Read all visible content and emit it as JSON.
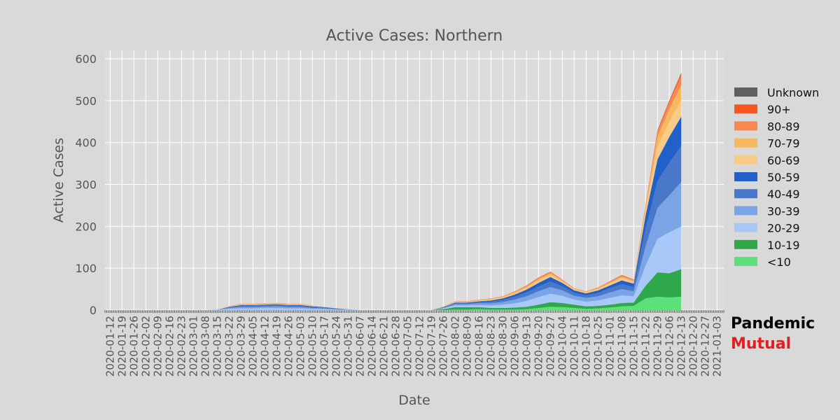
{
  "chart_data": {
    "type": "area",
    "stacked": true,
    "title": "Active Cases: Northern",
    "xlabel": "Date",
    "ylabel": "Active Cases",
    "ylim": [
      0,
      620
    ],
    "yticks": [
      0,
      100,
      200,
      300,
      400,
      500,
      600
    ],
    "x_start": "2020-01-12",
    "x_end": "2020-12-22",
    "xlim": [
      "2020-01-09",
      "2021-01-07"
    ],
    "x_tick_labels": [
      "2020-01-12",
      "2020-01-19",
      "2020-01-26",
      "2020-02-02",
      "2020-02-09",
      "2020-02-16",
      "2020-02-23",
      "2020-03-01",
      "2020-03-08",
      "2020-03-15",
      "2020-03-22",
      "2020-03-29",
      "2020-04-05",
      "2020-04-12",
      "2020-04-19",
      "2020-04-26",
      "2020-05-03",
      "2020-05-10",
      "2020-05-17",
      "2020-05-24",
      "2020-05-31",
      "2020-06-07",
      "2020-06-14",
      "2020-06-21",
      "2020-06-28",
      "2020-07-05",
      "2020-07-12",
      "2020-07-19",
      "2020-07-26",
      "2020-08-02",
      "2020-08-09",
      "2020-08-16",
      "2020-08-23",
      "2020-08-30",
      "2020-09-06",
      "2020-09-13",
      "2020-09-20",
      "2020-09-27",
      "2020-10-04",
      "2020-10-11",
      "2020-10-18",
      "2020-10-25",
      "2020-11-01",
      "2020-11-08",
      "2020-11-15",
      "2020-11-22",
      "2020-11-29",
      "2020-12-06",
      "2020-12-13",
      "2020-12-20",
      "2020-12-27",
      "2021-01-03"
    ],
    "grid": true,
    "legend_position": "right",
    "series": [
      {
        "name": "<10",
        "color": "#5ce07a",
        "values": [
          0,
          0,
          0,
          0,
          0,
          0,
          0,
          0,
          0,
          0,
          0,
          0,
          0,
          0,
          0,
          0,
          0,
          0,
          0,
          0,
          0,
          0,
          0,
          0,
          0,
          0,
          0,
          0,
          0,
          1,
          1,
          2,
          1,
          1,
          1,
          2,
          5,
          8,
          7,
          5,
          3,
          4,
          6,
          9,
          10,
          28,
          32,
          30,
          32
        ]
      },
      {
        "name": "10-19",
        "color": "#2ea84a",
        "values": [
          0,
          0,
          0,
          0,
          0,
          0,
          0,
          0,
          0,
          0,
          0,
          0,
          0,
          0,
          0,
          0,
          0,
          0,
          0,
          0,
          0,
          0,
          0,
          0,
          0,
          0,
          0,
          0,
          2,
          6,
          6,
          5,
          4,
          4,
          5,
          6,
          8,
          11,
          10,
          8,
          6,
          6,
          7,
          8,
          8,
          30,
          58,
          58,
          66
        ]
      },
      {
        "name": "20-29",
        "color": "#a8c8f8",
        "values": [
          0,
          0,
          0,
          0,
          0,
          0,
          0,
          0,
          0,
          1,
          3,
          4,
          4,
          5,
          5,
          4,
          4,
          3,
          2,
          1,
          1,
          0,
          0,
          0,
          0,
          0,
          0,
          0,
          2,
          4,
          4,
          5,
          6,
          8,
          10,
          14,
          18,
          20,
          17,
          12,
          11,
          13,
          16,
          18,
          15,
          48,
          80,
          98,
          102
        ]
      },
      {
        "name": "30-39",
        "color": "#7aa4e6",
        "values": [
          0,
          0,
          0,
          0,
          0,
          0,
          0,
          0,
          0,
          0,
          2,
          3,
          3,
          3,
          4,
          3,
          3,
          2,
          2,
          1,
          1,
          0,
          0,
          0,
          0,
          0,
          0,
          0,
          1,
          3,
          3,
          4,
          5,
          6,
          9,
          11,
          14,
          16,
          13,
          9,
          9,
          10,
          13,
          15,
          12,
          46,
          74,
          88,
          106
        ]
      },
      {
        "name": "40-49",
        "color": "#4a78c8",
        "values": [
          0,
          0,
          0,
          0,
          0,
          0,
          0,
          0,
          0,
          0,
          2,
          3,
          3,
          3,
          3,
          3,
          3,
          2,
          2,
          1,
          0,
          0,
          0,
          0,
          0,
          0,
          0,
          0,
          1,
          2,
          2,
          3,
          4,
          5,
          7,
          9,
          11,
          13,
          10,
          7,
          6,
          8,
          10,
          12,
          10,
          42,
          64,
          78,
          86
        ]
      },
      {
        "name": "50-59",
        "color": "#2060c8",
        "values": [
          0,
          0,
          0,
          0,
          0,
          0,
          0,
          0,
          0,
          0,
          1,
          2,
          2,
          2,
          2,
          2,
          2,
          2,
          1,
          1,
          0,
          0,
          0,
          0,
          0,
          0,
          0,
          0,
          1,
          2,
          2,
          2,
          3,
          4,
          5,
          7,
          9,
          11,
          8,
          6,
          5,
          6,
          7,
          9,
          8,
          32,
          52,
          62,
          70
        ]
      },
      {
        "name": "60-69",
        "color": "#f8cc88",
        "values": [
          0,
          0,
          0,
          0,
          0,
          0,
          0,
          0,
          0,
          0,
          1,
          1,
          1,
          1,
          1,
          1,
          1,
          1,
          0,
          0,
          0,
          0,
          0,
          0,
          0,
          0,
          0,
          0,
          1,
          1,
          1,
          2,
          2,
          2,
          3,
          4,
          5,
          5,
          3,
          2,
          2,
          3,
          4,
          5,
          4,
          12,
          30,
          36,
          40
        ]
      },
      {
        "name": "70-79",
        "color": "#f8b860",
        "values": [
          0,
          0,
          0,
          0,
          0,
          0,
          0,
          0,
          0,
          0,
          1,
          1,
          1,
          1,
          1,
          1,
          1,
          1,
          0,
          0,
          0,
          0,
          0,
          0,
          0,
          0,
          0,
          0,
          1,
          1,
          1,
          1,
          2,
          2,
          3,
          3,
          4,
          4,
          3,
          2,
          2,
          2,
          3,
          4,
          3,
          8,
          24,
          30,
          36
        ]
      },
      {
        "name": "80-89",
        "color": "#f88850",
        "values": [
          0,
          0,
          0,
          0,
          0,
          0,
          0,
          0,
          0,
          0,
          0,
          1,
          1,
          1,
          1,
          1,
          1,
          0,
          0,
          0,
          0,
          0,
          0,
          0,
          0,
          0,
          0,
          0,
          0,
          1,
          1,
          1,
          1,
          1,
          2,
          2,
          3,
          3,
          2,
          1,
          1,
          2,
          2,
          3,
          2,
          4,
          12,
          16,
          22
        ]
      },
      {
        "name": "90+",
        "color": "#f85820",
        "values": [
          0,
          0,
          0,
          0,
          0,
          0,
          0,
          0,
          0,
          0,
          0,
          0,
          0,
          0,
          0,
          0,
          0,
          0,
          0,
          0,
          0,
          0,
          0,
          0,
          0,
          0,
          0,
          0,
          0,
          0,
          0,
          0,
          0,
          0,
          0,
          1,
          1,
          1,
          0,
          0,
          0,
          0,
          1,
          1,
          1,
          1,
          3,
          4,
          6
        ]
      },
      {
        "name": "Unknown",
        "color": "#606060",
        "values": [
          0,
          0,
          0,
          0,
          0,
          0,
          0,
          0,
          0,
          0,
          0,
          0,
          0,
          0,
          0,
          0,
          0,
          0,
          0,
          0,
          0,
          0,
          0,
          0,
          0,
          0,
          0,
          0,
          0,
          0,
          0,
          0,
          0,
          0,
          0,
          0,
          0,
          0,
          0,
          0,
          0,
          0,
          0,
          0,
          0,
          0,
          1,
          1,
          1
        ]
      }
    ]
  },
  "brand": {
    "line1": "Pandemic",
    "line2": "Mutual"
  }
}
